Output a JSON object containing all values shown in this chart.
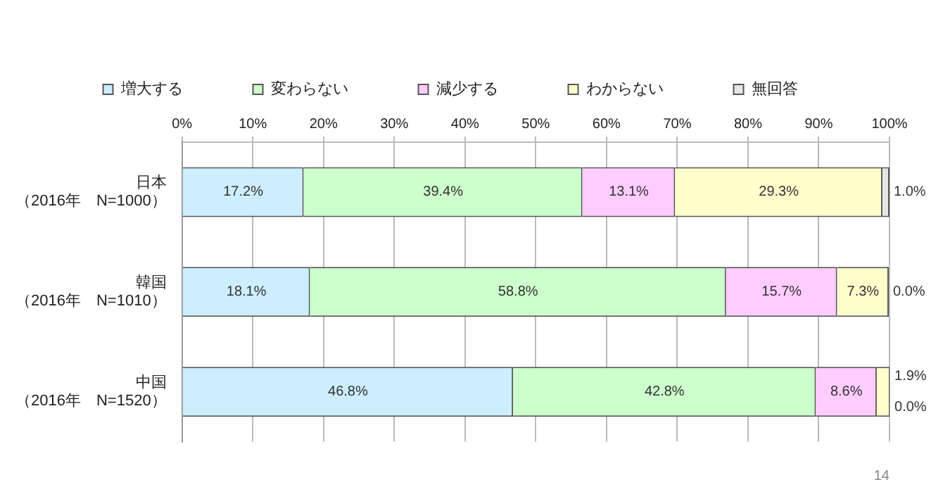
{
  "chart_data": {
    "type": "bar",
    "orientation": "horizontal",
    "stacked": true,
    "categories": [
      "日本（2016年　N=1000）",
      "韓国（2016年　N=1010）",
      "中国（2016年　N=1520）"
    ],
    "series": [
      {
        "name": "増大する",
        "color": "#cceeff",
        "values": [
          17.2,
          18.1,
          46.8
        ],
        "value_labels": [
          "17.2%",
          "18.1%",
          "46.8%"
        ]
      },
      {
        "name": "変わらない",
        "color": "#ccffcc",
        "values": [
          39.4,
          58.8,
          42.8
        ],
        "value_labels": [
          "39.4%",
          "58.8%",
          "42.8%"
        ]
      },
      {
        "name": "減少する",
        "color": "#ffccff",
        "values": [
          13.1,
          15.7,
          8.6
        ],
        "value_labels": [
          "13.1%",
          "15.7%",
          "8.6%"
        ]
      },
      {
        "name": "わからない",
        "color": "#ffffcc",
        "values": [
          29.3,
          7.3,
          1.9
        ],
        "value_labels": [
          "29.3%",
          "7.3%",
          "1.9%"
        ]
      },
      {
        "name": "無回答",
        "color": "#e6e6e6",
        "values": [
          1.0,
          0.0,
          0.0
        ],
        "value_labels": [
          "1.0%",
          "0.0%",
          "0.0%"
        ]
      }
    ],
    "xlim": [
      0,
      100
    ],
    "xticks": [
      {
        "value": 0,
        "label": "0%"
      },
      {
        "value": 10,
        "label": "10%"
      },
      {
        "value": 20,
        "label": "20%"
      },
      {
        "value": 30,
        "label": "30%"
      },
      {
        "value": 40,
        "label": "40%"
      },
      {
        "value": 50,
        "label": "50%"
      },
      {
        "value": 60,
        "label": "60%"
      },
      {
        "value": 70,
        "label": "70%"
      },
      {
        "value": 80,
        "label": "80%"
      },
      {
        "value": 90,
        "label": "90%"
      },
      {
        "value": 100,
        "label": "100%"
      }
    ],
    "grid": "x",
    "legend": "top",
    "annotations": [
      "14"
    ]
  }
}
